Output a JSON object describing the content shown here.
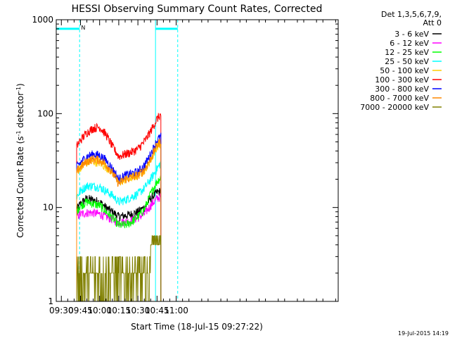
{
  "chart_data": {
    "type": "line",
    "title": "HESSI Observing Summary Count Rates, Corrected",
    "xlabel": "Start Time (18-Jul-15 09:27:22)",
    "ylabel": "Corrected Count Rate (s",
    "ylabel_sup1": "-1",
    "ylabel_mid": " detector",
    "ylabel_sup2": "-1",
    "ylabel_end": ")",
    "y_scale": "log",
    "xlim": [
      566,
      787
    ],
    "ylim": [
      1,
      1000
    ],
    "x_ticks": [
      {
        "value": 570,
        "label": "09:30"
      },
      {
        "value": 585,
        "label": "09:45"
      },
      {
        "value": 600,
        "label": "10:00"
      },
      {
        "value": 615,
        "label": "10:15"
      },
      {
        "value": 630,
        "label": "10:30"
      },
      {
        "value": 645,
        "label": "10:45"
      },
      {
        "value": 660,
        "label": "11:00"
      }
    ],
    "y_ticks": [
      {
        "value": 1,
        "label": "1"
      },
      {
        "value": 10,
        "label": "10"
      },
      {
        "value": 100,
        "label": "100"
      },
      {
        "value": 1000,
        "label": "1000"
      }
    ],
    "legend_header": [
      "Det 1,3,5,6,7,9,",
      "Att 0"
    ],
    "legend_position": "right",
    "grid": false,
    "night_intervals": [
      [
        566,
        584.3
      ],
      [
        643.8,
        661.2
      ]
    ],
    "night_level": 800,
    "saa_label": "N",
    "saa_label_x": 585.5,
    "timestamp": "19-Jul-2015 14:19",
    "x": [
      582,
      585,
      590,
      595,
      600,
      605,
      610,
      615,
      620,
      625,
      630,
      635,
      640,
      645,
      648
    ],
    "series": [
      {
        "name": "3 - 6 keV",
        "color": "#000000",
        "values": [
          9.5,
          11,
          12.5,
          12,
          11.5,
          10,
          9,
          8,
          8.2,
          8.5,
          9,
          10,
          12.5,
          14.5,
          15
        ]
      },
      {
        "name": "6 - 12 keV",
        "color": "#ff00ff",
        "values": [
          8,
          8.5,
          8.8,
          8.8,
          8.5,
          8,
          7.5,
          7,
          7,
          7.3,
          7.8,
          8.5,
          10.5,
          12.5,
          13
        ]
      },
      {
        "name": "12 - 25 keV",
        "color": "#00ff00",
        "values": [
          9,
          10.5,
          11.5,
          11,
          10.5,
          9,
          7.8,
          6.5,
          6.5,
          7,
          8,
          9.5,
          14,
          19,
          21
        ]
      },
      {
        "name": "25 - 50 keV",
        "color": "#00ffff",
        "values": [
          13,
          15,
          17,
          17,
          16.5,
          15,
          13.5,
          11.5,
          12,
          13,
          14,
          16,
          20,
          26,
          30
        ]
      },
      {
        "name": "50 - 100 keV",
        "color": "#ffcc00",
        "values": [
          24,
          27,
          30,
          31,
          30,
          27,
          24,
          18.5,
          20,
          21,
          22,
          25,
          32,
          45,
          48
        ]
      },
      {
        "name": "100 - 300 keV",
        "color": "#ff0000",
        "values": [
          45,
          52,
          63,
          70,
          72,
          60,
          45,
          35,
          37,
          39,
          42,
          50,
          65,
          88,
          98
        ]
      },
      {
        "name": "300 - 800 keV",
        "color": "#0000ff",
        "values": [
          27,
          30,
          35,
          37,
          36,
          32,
          26,
          20,
          22,
          23,
          24,
          28,
          37,
          52,
          57
        ]
      },
      {
        "name": "800 - 7000 keV",
        "color": "#ff8800",
        "values": [
          24,
          27,
          31,
          33,
          32,
          29,
          23.5,
          18,
          20,
          21,
          22,
          25,
          33,
          46,
          51
        ]
      },
      {
        "name": "7000 - 20000 keV",
        "color": "#808000",
        "values": [
          1.5,
          1.8,
          2.2,
          2.4,
          2.3,
          2,
          1.6,
          1.3,
          1.2,
          1.3,
          1.5,
          1.9,
          3,
          4.3,
          4.8
        ]
      }
    ]
  }
}
